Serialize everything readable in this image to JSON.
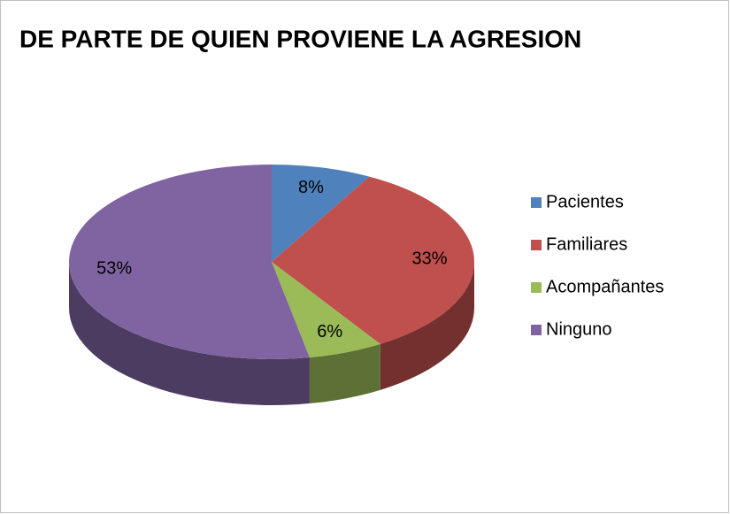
{
  "chart_data": {
    "type": "pie",
    "title": "DE PARTE DE QUIEN PROVIENE LA AGRESION",
    "categories": [
      "Pacientes",
      "Familiares",
      "Acompañantes",
      "Ninguno"
    ],
    "values": [
      8,
      33,
      6,
      53
    ],
    "value_labels": [
      "8%",
      "33%",
      "6%",
      "53%"
    ],
    "colors": [
      "#4f81bd",
      "#c0504d",
      "#9bbb59",
      "#8064a2"
    ],
    "legend": "right"
  }
}
